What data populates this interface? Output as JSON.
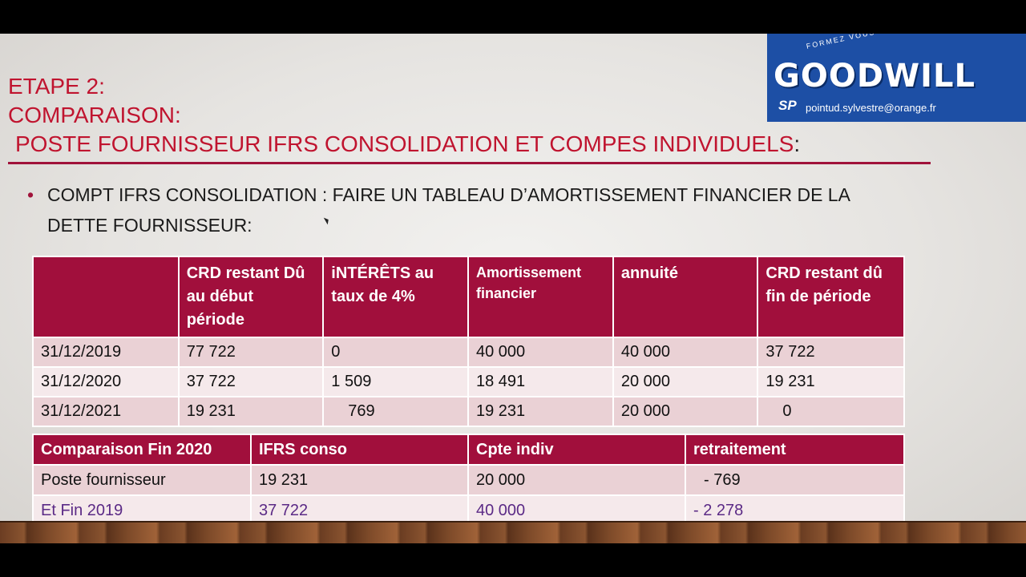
{
  "title": {
    "line1": "ETAPE 2:",
    "line2": "COMPARAISON:",
    "line3": "POSTE FOURNISSEUR IFRS CONSOLIDATION  ET COMPES INDIVIDUELS",
    "colon": ":"
  },
  "bullet": {
    "line1": "COMPT IFRS CONSOLIDATION : FAIRE UN TABLEAU D’AMORTISSEMENT FINANCIER DE LA",
    "line2": "DETTE FOURNISSEUR:"
  },
  "logo": {
    "tagline": "FORMEZ VOUS AVEC",
    "word": "GOODWILL",
    "initials": "SP",
    "email": "pointud.sylvestre@orange.fr"
  },
  "table1": {
    "headers": [
      "",
      "CRD restant Dû au début période",
      "iNTÉRÊTS au taux de 4%",
      "Amortissement financier",
      "annuité",
      "CRD restant dû fin de période"
    ],
    "rows": [
      [
        "31/12/2019",
        "77 722",
        "0",
        "40 000",
        "40 000",
        "37 722"
      ],
      [
        "31/12/2020",
        "37 722",
        "1 509",
        "18 491",
        "20 000",
        "19 231"
      ],
      [
        "31/12/2021",
        "19 231",
        "769",
        "19 231",
        "20 000",
        "0"
      ]
    ]
  },
  "table2": {
    "headers": [
      "Comparaison Fin 2020",
      "IFRS conso",
      "Cpte indiv",
      "retraitement"
    ],
    "rows": [
      [
        "Poste fournisseur",
        "19 231",
        "20 000",
        "- 769"
      ],
      [
        "Et Fin 2019",
        "37 722",
        "40 000",
        "- 2 278"
      ]
    ]
  },
  "colors": {
    "title": "#c0142f",
    "header_bg": "#a10f3c",
    "row_dark": "#ead1d5",
    "row_light": "#f5e9eb",
    "logo_bg": "#1d4fa5",
    "highlight_green": "#1aa33a",
    "highlight_blue": "#2f9bdc",
    "purple_text": "#5b2a86"
  }
}
